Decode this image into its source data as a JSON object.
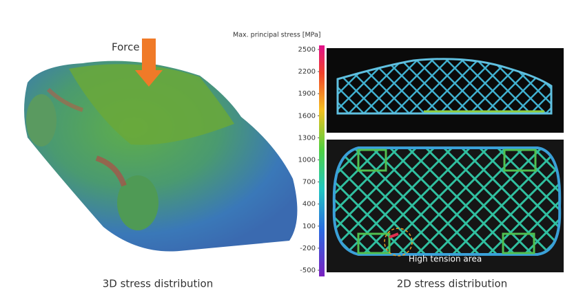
{
  "force_label": "Force",
  "colorbar": {
    "title": "Max. principal stress [MPa]",
    "ticks": [
      2500,
      2200,
      1900,
      1600,
      1300,
      1000,
      700,
      400,
      100,
      -200,
      -500
    ]
  },
  "annotation": "High tension area",
  "captions": {
    "left": "3D stress distribution",
    "right": "2D stress distribution"
  }
}
